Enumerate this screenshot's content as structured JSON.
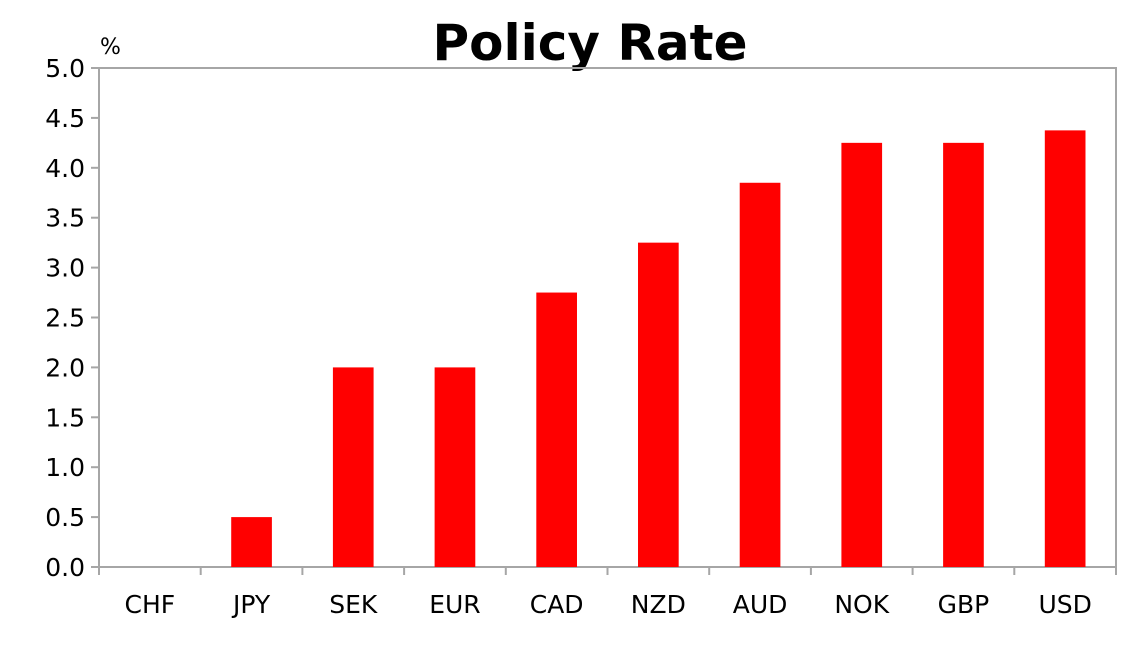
{
  "chart_data": {
    "type": "bar",
    "title": "Policy Rate",
    "unit": "%",
    "categories": [
      "CHF",
      "JPY",
      "SEK",
      "EUR",
      "CAD",
      "NZD",
      "AUD",
      "NOK",
      "GBP",
      "USD"
    ],
    "values": [
      0.0,
      0.5,
      2.0,
      2.0,
      2.75,
      3.25,
      3.85,
      4.25,
      4.25,
      4.375
    ],
    "y_ticks": [
      "0.0",
      "0.5",
      "1.0",
      "1.5",
      "2.0",
      "2.5",
      "3.0",
      "3.5",
      "4.0",
      "4.5",
      "5.0"
    ],
    "ylim": [
      0,
      5
    ],
    "xlabel": "",
    "ylabel": "",
    "grid": false,
    "legend": "none",
    "bar_color": "#ff0000",
    "axis_color": "#a6a6a6"
  }
}
